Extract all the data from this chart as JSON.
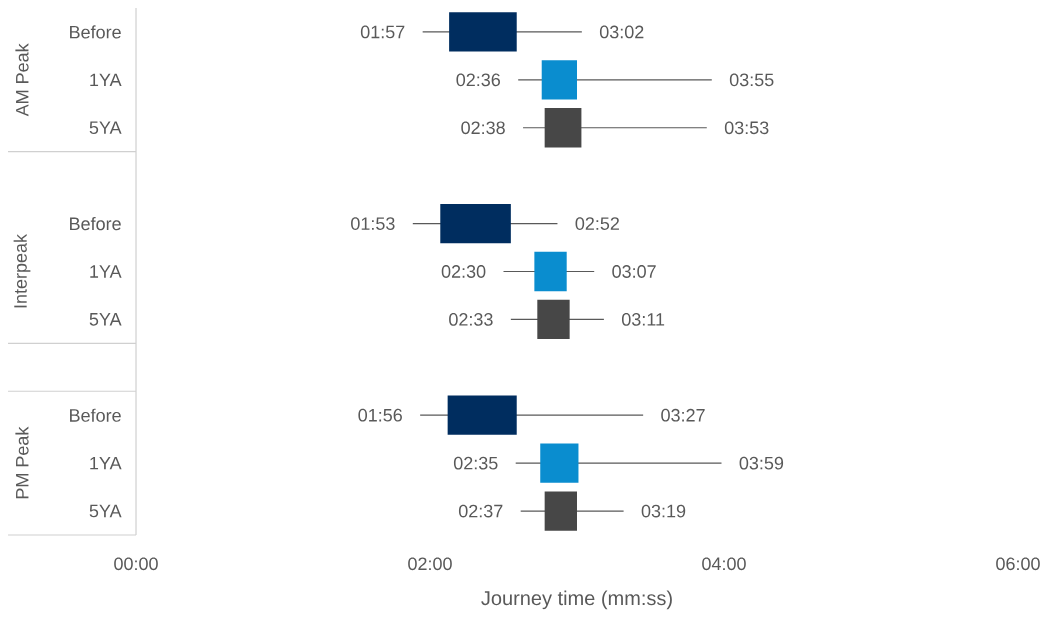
{
  "chart_data": {
    "type": "bar",
    "orientation": "horizontal",
    "xlabel": "Journey time (mm:ss)",
    "categories": [
      "Before",
      "1YA",
      "5YA",
      null,
      "Before",
      "1YA",
      "5YA",
      null,
      "Before",
      "1YA",
      "5YA"
    ],
    "base": [
      2.13,
      2.76,
      2.78,
      null,
      2.07,
      2.71,
      2.73,
      null,
      2.12,
      2.75,
      2.78
    ],
    "values": [
      0.46,
      0.24,
      0.25,
      null,
      0.48,
      0.22,
      0.22,
      null,
      0.47,
      0.26,
      0.22
    ],
    "errors": [
      [
        1.95,
        3.033
      ],
      [
        2.6,
        3.917
      ],
      [
        2.633,
        3.883
      ],
      null,
      [
        1.883,
        2.867
      ],
      [
        2.5,
        3.117
      ],
      [
        2.55,
        3.183
      ],
      null,
      [
        1.933,
        3.45
      ],
      [
        2.583,
        3.983
      ],
      [
        2.617,
        3.317
      ]
    ],
    "colors": [
      "#002d5f",
      "#0a8dcf",
      "#474747",
      null,
      "#002d5f",
      "#0a8dcf",
      "#474747",
      null,
      "#002d5f",
      "#0a8dcf",
      "#474747"
    ],
    "xlim": [
      0,
      6
    ],
    "xticks": [
      {
        "value": 0,
        "label": "00:00"
      },
      {
        "value": 2,
        "label": "02:00"
      },
      {
        "value": 4,
        "label": "04:00"
      },
      {
        "value": 6,
        "label": "06:00"
      }
    ],
    "annotations": [
      "AM Peak",
      "Interpeak",
      "PM Peak",
      "01:57",
      "03:02",
      "02:36",
      "03:55",
      "02:38",
      "03:53",
      "01:53",
      "02:52",
      "02:30",
      "03:07",
      "02:33",
      "03:11",
      "01:56",
      "03:27",
      "02:35",
      "03:59",
      "02:37",
      "03:19"
    ]
  }
}
